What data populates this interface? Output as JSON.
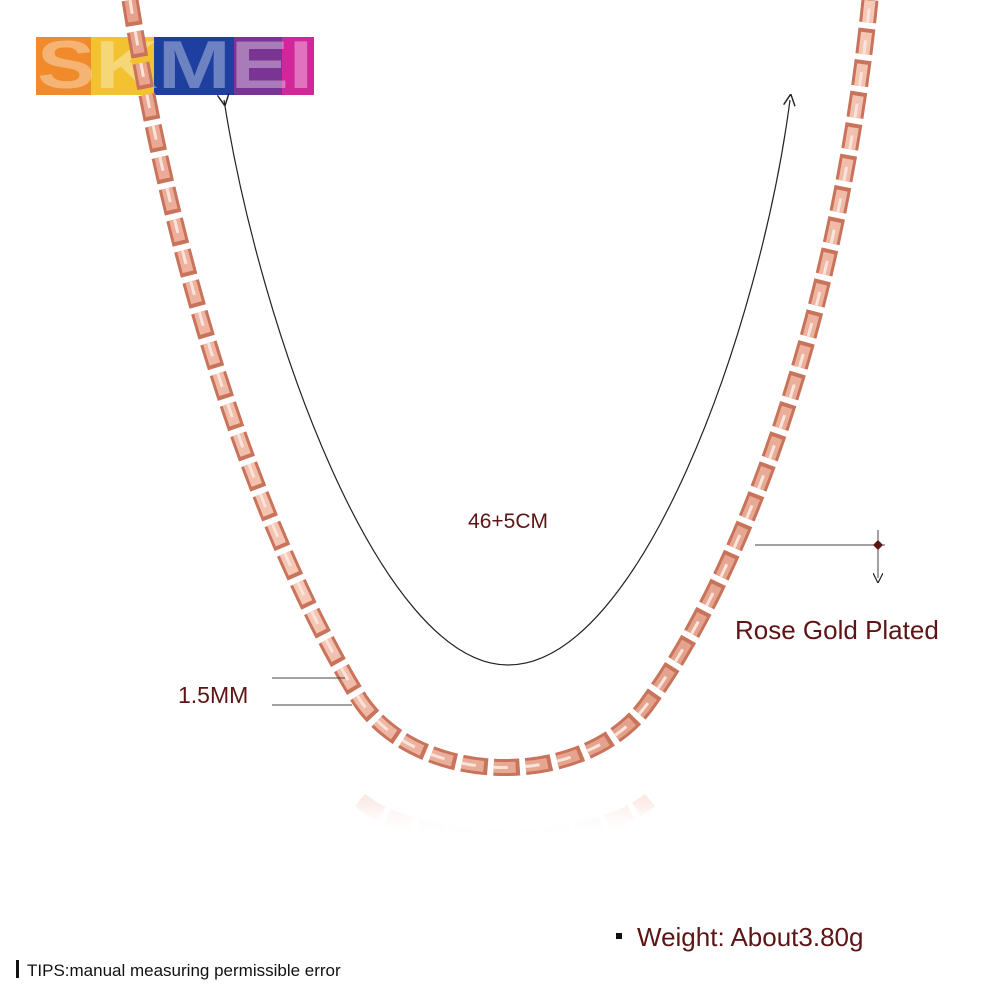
{
  "logo": "SKMEI",
  "length_label": "46+5CM",
  "plating_label": "Rose Gold Plated",
  "width_label": "1.5MM",
  "weight_label": "Weight: About3.80g",
  "tips": "TIPS:manual measuring permissible error"
}
